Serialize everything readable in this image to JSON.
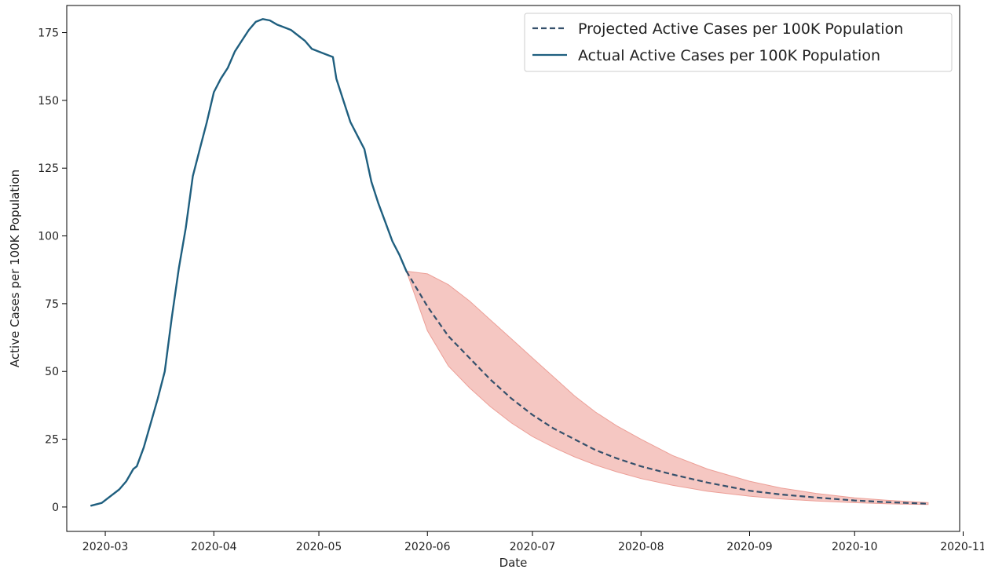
{
  "chart_data": {
    "type": "line",
    "title": "",
    "xlabel": "Date",
    "ylabel": "Active Cases per 100K Population",
    "xlim": [
      "2020-02-19",
      "2020-10-31"
    ],
    "ylim": [
      -9,
      185
    ],
    "x_ticks": [
      "2020-03-01",
      "2020-04-01",
      "2020-05-01",
      "2020-06-01",
      "2020-07-01",
      "2020-08-01",
      "2020-09-01",
      "2020-10-01",
      "2020-11-01"
    ],
    "x_tick_labels": [
      "2020-03",
      "2020-04",
      "2020-05",
      "2020-06",
      "2020-07",
      "2020-08",
      "2020-09",
      "2020-10",
      "2020-11"
    ],
    "y_ticks": [
      0,
      25,
      50,
      75,
      100,
      125,
      150,
      175
    ],
    "y_tick_labels": [
      "0",
      "25",
      "50",
      "75",
      "100",
      "125",
      "150",
      "175"
    ],
    "grid": false,
    "legend_position": "top-right",
    "colors": {
      "line": "#1f5f7f",
      "projected": "#35506b",
      "band": "#f2b4ad",
      "band_edge": "#ec9f97"
    },
    "series": [
      {
        "name": "Projected Active Cases per 100K Population",
        "style": "dashed",
        "x": [
          "2020-05-26",
          "2020-06-01",
          "2020-06-07",
          "2020-06-13",
          "2020-06-19",
          "2020-06-25",
          "2020-07-01",
          "2020-07-07",
          "2020-07-13",
          "2020-07-19",
          "2020-07-25",
          "2020-08-01",
          "2020-08-10",
          "2020-08-20",
          "2020-09-01",
          "2020-09-10",
          "2020-09-20",
          "2020-10-01",
          "2020-10-10",
          "2020-10-22"
        ],
        "y": [
          87,
          74,
          63,
          55,
          47,
          40,
          34,
          29,
          25,
          21,
          18,
          15,
          12,
          9,
          6,
          4.6,
          3.5,
          2.4,
          1.8,
          1.2
        ]
      },
      {
        "name": "Actual Active Cases per 100K Population",
        "style": "solid",
        "x": [
          "2020-02-26",
          "2020-02-29",
          "2020-03-02",
          "2020-03-05",
          "2020-03-07",
          "2020-03-09",
          "2020-03-10",
          "2020-03-12",
          "2020-03-14",
          "2020-03-16",
          "2020-03-18",
          "2020-03-20",
          "2020-03-22",
          "2020-03-24",
          "2020-03-26",
          "2020-03-28",
          "2020-03-30",
          "2020-04-01",
          "2020-04-03",
          "2020-04-05",
          "2020-04-07",
          "2020-04-09",
          "2020-04-11",
          "2020-04-13",
          "2020-04-15",
          "2020-04-17",
          "2020-04-19",
          "2020-04-21",
          "2020-04-23",
          "2020-04-25",
          "2020-04-27",
          "2020-04-29",
          "2020-05-01",
          "2020-05-03",
          "2020-05-05",
          "2020-05-06",
          "2020-05-08",
          "2020-05-10",
          "2020-05-12",
          "2020-05-14",
          "2020-05-16",
          "2020-05-18",
          "2020-05-20",
          "2020-05-22",
          "2020-05-24",
          "2020-05-26"
        ],
        "y": [
          0.5,
          1.5,
          3.5,
          6.5,
          9.5,
          14,
          15,
          22,
          31,
          40,
          50,
          70,
          88,
          103,
          122,
          132,
          142,
          153,
          158,
          162,
          168,
          172,
          176,
          179,
          180,
          179.5,
          178,
          177,
          176,
          174,
          172,
          169,
          168,
          167,
          166,
          158,
          150,
          142,
          137,
          132,
          120,
          112,
          105,
          98,
          93,
          87
        ]
      }
    ],
    "band": {
      "x": [
        "2020-05-26",
        "2020-06-01",
        "2020-06-07",
        "2020-06-13",
        "2020-06-19",
        "2020-06-25",
        "2020-07-01",
        "2020-07-07",
        "2020-07-13",
        "2020-07-19",
        "2020-07-25",
        "2020-08-01",
        "2020-08-10",
        "2020-08-20",
        "2020-09-01",
        "2020-09-10",
        "2020-09-20",
        "2020-10-01",
        "2020-10-10",
        "2020-10-22"
      ],
      "upper": [
        87,
        86,
        82,
        76,
        69,
        62,
        55,
        48,
        41,
        35,
        30,
        25,
        19,
        14,
        9.5,
        7,
        5,
        3.4,
        2.5,
        1.6
      ],
      "lower": [
        87,
        65,
        52,
        44,
        37,
        31,
        26,
        22,
        18.5,
        15.5,
        13,
        10.5,
        8,
        5.8,
        4,
        3,
        2.2,
        1.6,
        1.2,
        0.9
      ]
    }
  }
}
